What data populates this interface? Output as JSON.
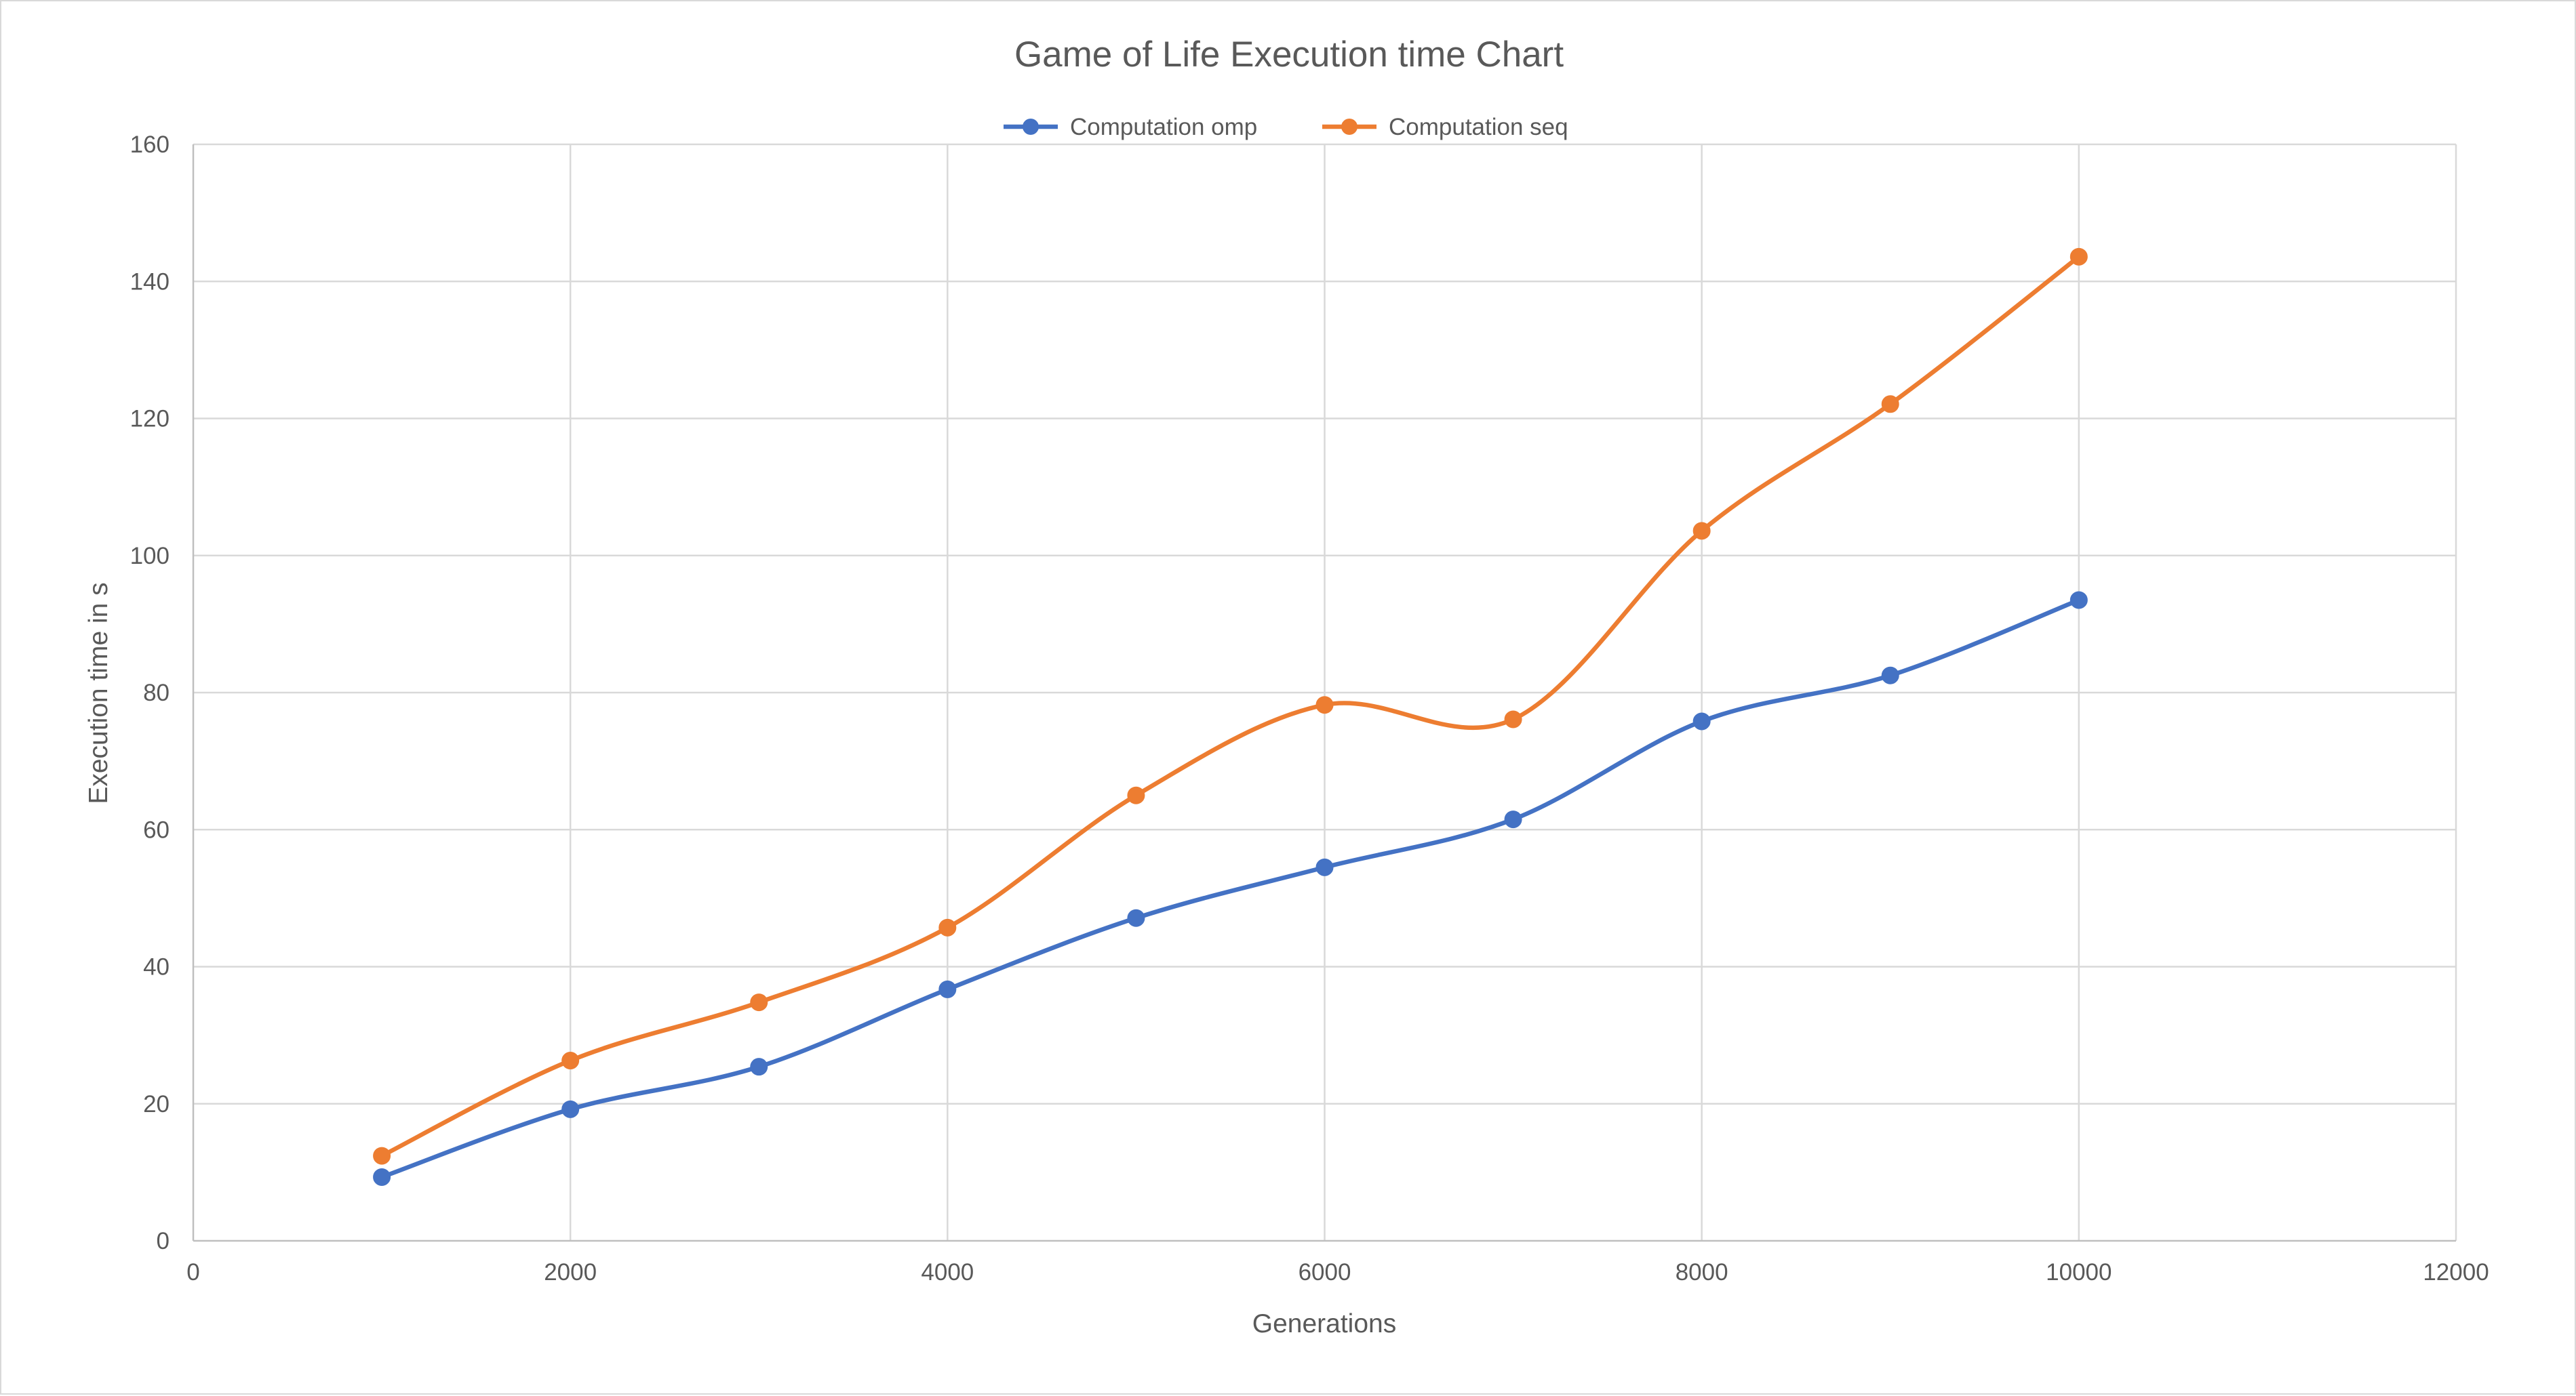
{
  "chart_data": {
    "type": "line",
    "smooth": true,
    "title": "Game of Life Execution time Chart",
    "xlabel": "Generations",
    "ylabel": "Execution time in s",
    "xlim": [
      0,
      12000
    ],
    "ylim": [
      0,
      160
    ],
    "x_ticks": [
      0,
      2000,
      4000,
      6000,
      8000,
      10000,
      12000
    ],
    "y_ticks": [
      0,
      20,
      40,
      60,
      80,
      100,
      120,
      140,
      160
    ],
    "grid": true,
    "legend_position": "top",
    "x": [
      1000,
      2000,
      3000,
      4000,
      5000,
      6000,
      7000,
      8000,
      9000,
      10000
    ],
    "series": [
      {
        "name": "Computation omp",
        "color": "#4472c4",
        "values": [
          9.3,
          19.2,
          25.4,
          36.7,
          47.1,
          54.5,
          61.5,
          75.8,
          82.5,
          93.5
        ]
      },
      {
        "name": "Computation seq",
        "color": "#ed7d31",
        "values": [
          12.4,
          26.3,
          34.8,
          45.7,
          65.0,
          78.2,
          76.1,
          103.6,
          122.1,
          143.6
        ]
      }
    ]
  }
}
